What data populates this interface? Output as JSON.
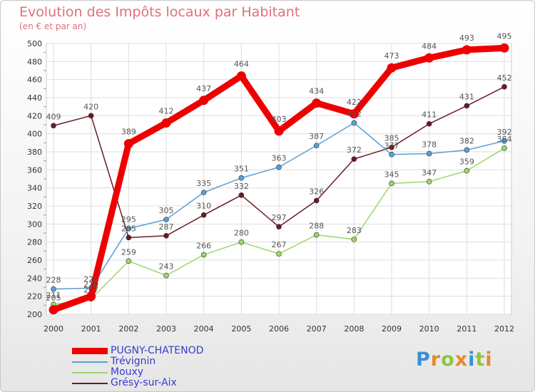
{
  "header": {
    "title": "Evolution des Impôts locaux par Habitant",
    "subtitle": "(en € et par an)"
  },
  "brand": {
    "name": "Proxiti",
    "letters": [
      "P",
      "r",
      "o",
      "x",
      "i",
      "t",
      "i"
    ],
    "letter_colors": [
      "#3a8fd8",
      "#e8892a",
      "#8cc63f",
      "#e8892a",
      "#3a8fd8",
      "#8cc63f",
      "#e8892a"
    ]
  },
  "chart_data": {
    "type": "line",
    "title": "Evolution des Impôts locaux par Habitant",
    "subtitle": "(en € et par an)",
    "xlabel": "",
    "ylabel": "",
    "x": [
      "2000",
      "2001",
      "2002",
      "2003",
      "2004",
      "2005",
      "2006",
      "2007",
      "2008",
      "2009",
      "2010",
      "2011",
      "2012"
    ],
    "ylim": [
      200,
      500
    ],
    "yticks": [
      200,
      220,
      240,
      260,
      280,
      300,
      320,
      340,
      360,
      380,
      400,
      420,
      440,
      460,
      480,
      500
    ],
    "grid": true,
    "legend_position": "bottom-left",
    "series": [
      {
        "name": "Gresy",
        "label": "Grésy-sur-Aix",
        "values": [
          409,
          420,
          285,
          287,
          310,
          332,
          297,
          326,
          372,
          385,
          411,
          431,
          452
        ],
        "labels": [
          "409",
          "420",
          "285",
          "287",
          "310",
          "332",
          "297",
          "326",
          "372",
          "385",
          "411",
          "431",
          "452"
        ],
        "color": "#6b1a24",
        "style": "thin"
      },
      {
        "name": "Mouxy",
        "label": "Mouxy",
        "values": [
          211,
          217,
          259,
          243,
          266,
          280,
          267,
          288,
          283,
          345,
          347,
          359,
          384
        ],
        "labels": [
          "211",
          "217",
          "259",
          "243",
          "266",
          "280",
          "267",
          "288",
          "283",
          "345",
          "347",
          "359",
          "384"
        ],
        "color": "#9ad86a",
        "style": "thin"
      },
      {
        "name": "Trevignin",
        "label": "Trévignin",
        "values": [
          228,
          229,
          295,
          305,
          335,
          351,
          363,
          387,
          412,
          377,
          378,
          382,
          392
        ],
        "labels": [
          "228",
          "229",
          "295",
          "305",
          "335",
          "351",
          "363",
          "387",
          "412",
          "377",
          "378",
          "382",
          "392"
        ],
        "color": "#5a9fd4",
        "style": "thin"
      },
      {
        "name": "Pugny",
        "label": "PUGNY-CHATENOD",
        "values": [
          205,
          220,
          389,
          412,
          437,
          464,
          403,
          434,
          422,
          473,
          484,
          493,
          495
        ],
        "labels": [
          "205",
          "220",
          "389",
          "412",
          "437",
          "464",
          "403",
          "434",
          "422",
          "473",
          "484",
          "493",
          "495"
        ],
        "color": "#ee0000",
        "style": "thick"
      }
    ]
  },
  "legend": {
    "items": [
      {
        "label": "PUGNY-CHATENOD",
        "color": "#ee0000",
        "label_color": "#3a3acc",
        "thick": true
      },
      {
        "label": "Trévignin",
        "color": "#5a9fd4",
        "label_color": "#3a3acc",
        "thick": false
      },
      {
        "label": "Mouxy",
        "color": "#9ad86a",
        "label_color": "#3a3acc",
        "thick": false
      },
      {
        "label": "Grésy-sur-Aix",
        "color": "#6b1a24",
        "label_color": "#3a3acc",
        "thick": false
      }
    ]
  }
}
